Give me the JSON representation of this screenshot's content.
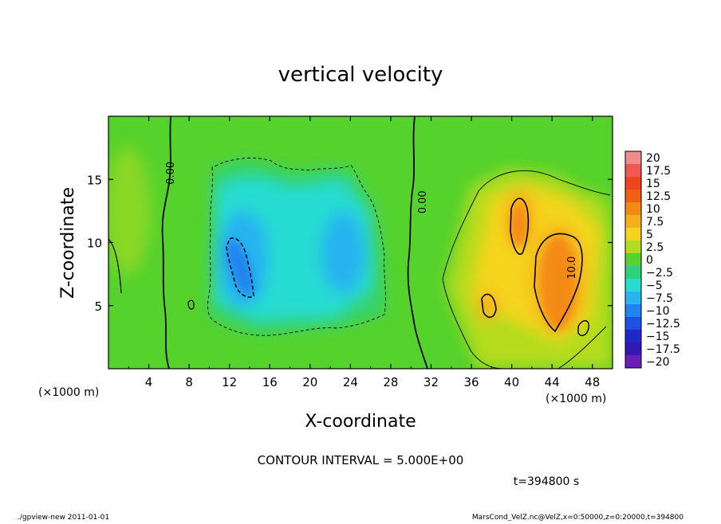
{
  "chart_data": {
    "type": "heatmap",
    "title": "vertical velocity",
    "xlabel": "X-coordinate",
    "ylabel": "Z-coordinate",
    "x_unit_left": "(×1000 m)",
    "x_unit_right": "(×1000 m)",
    "xlim": [
      0,
      50
    ],
    "ylim": [
      0,
      20
    ],
    "x_ticks": [
      4,
      8,
      12,
      16,
      20,
      24,
      28,
      32,
      36,
      40,
      44,
      48
    ],
    "y_ticks": [
      5,
      10,
      15
    ],
    "colorbar": {
      "labels": [
        "20",
        "17.5",
        "15",
        "12.5",
        "10",
        "7.5",
        "5",
        "2.5",
        "0",
        "−2.5",
        "−5",
        "−7.5",
        "−10",
        "−12.5",
        "−15",
        "−17.5",
        "−20"
      ],
      "colors": [
        "#f08c8c",
        "#ec5a50",
        "#ee4420",
        "#f06010",
        "#f48a12",
        "#f6b01e",
        "#f4d41e",
        "#b4dc1e",
        "#56d22c",
        "#2ed27a",
        "#28dcd2",
        "#28b4f0",
        "#2084f0",
        "#1e50e4",
        "#1e28c8",
        "#3418b4",
        "#6a1eb4"
      ]
    },
    "contour_labels": [
      {
        "text": "0.00",
        "x": 6.5,
        "z": 15.5,
        "rotate": -90
      },
      {
        "text": "0.00",
        "x": 31.5,
        "z": 13.2,
        "rotate": -90
      },
      {
        "text": "10.0",
        "x": 46.3,
        "z": 8.0,
        "rotate": -90
      }
    ],
    "contour_interval": "CONTOUR INTERVAL = 5.000E+00",
    "time_label": "t=394800 s"
  },
  "footer": {
    "left": "./gpview-new  2011-01-01",
    "right": "MarsCond_VelZ.nc@VelZ,x=0:50000,z=0:20000,t=394800"
  }
}
